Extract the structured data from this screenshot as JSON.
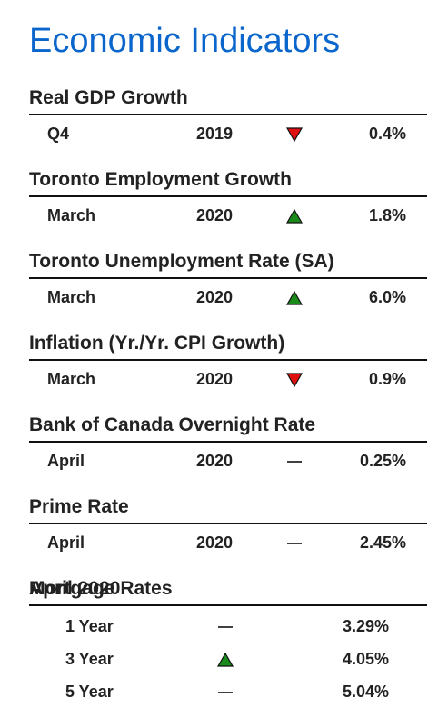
{
  "title": "Economic Indicators",
  "indicators": [
    {
      "name": "Real GDP Growth",
      "period": "Q4",
      "year": "2019",
      "trend": "down",
      "value": "0.4%"
    },
    {
      "name": "Toronto Employment Growth",
      "period": "March",
      "year": "2020",
      "trend": "up",
      "value": "1.8%"
    },
    {
      "name": "Toronto Unemployment Rate (SA)",
      "period": "March",
      "year": "2020",
      "trend": "up",
      "value": "6.0%"
    },
    {
      "name": "Inflation (Yr./Yr. CPI Growth)",
      "period": "March",
      "year": "2020",
      "trend": "down",
      "value": "0.9%"
    },
    {
      "name": "Bank of Canada Overnight Rate",
      "period": "April",
      "year": "2020",
      "trend": "flat",
      "value": "0.25%"
    },
    {
      "name": "Prime Rate",
      "period": "April",
      "year": "2020",
      "trend": "flat",
      "value": "2.45%"
    }
  ],
  "mortgage": {
    "title": "Mortgage Rates",
    "date": "April 2020",
    "rows": [
      {
        "term": "1 Year",
        "trend": "flat",
        "rate": "3.29%"
      },
      {
        "term": "3 Year",
        "trend": "up",
        "rate": "4.05%"
      },
      {
        "term": "5 Year",
        "trend": "flat",
        "rate": "5.04%"
      }
    ]
  }
}
